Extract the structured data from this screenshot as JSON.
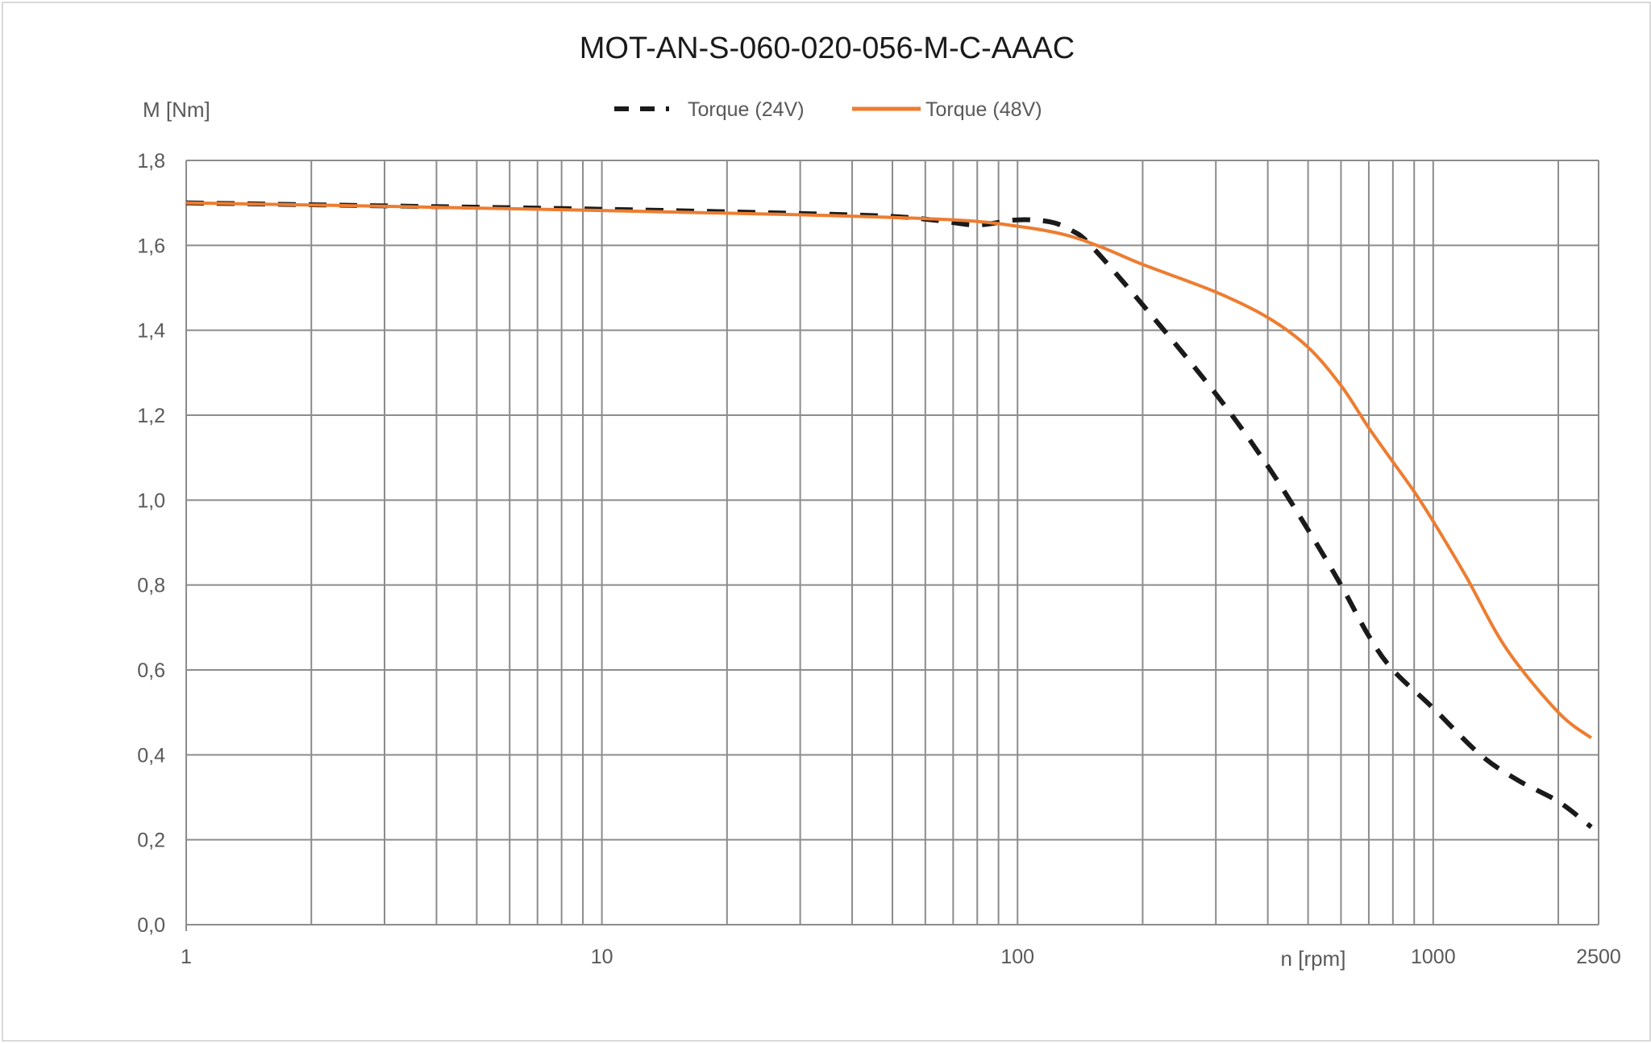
{
  "chart_data": {
    "type": "line",
    "title": "MOT-AN-S-060-020-056-M-C-AAAC",
    "xlabel": "n [rpm]",
    "ylabel": "M [Nm]",
    "xscale": "log",
    "xlim": [
      1,
      2500
    ],
    "ylim": [
      0,
      1.8
    ],
    "grid": true,
    "legend_position": "top-center",
    "x_tick_labels": [
      {
        "value": 1,
        "label": "1"
      },
      {
        "value": 10,
        "label": "10"
      },
      {
        "value": 100,
        "label": "100"
      },
      {
        "value": 1000,
        "label": "1000"
      },
      {
        "value": 2500,
        "label": "2500"
      }
    ],
    "x_gridlines": [
      1,
      2,
      3,
      4,
      5,
      6,
      7,
      8,
      9,
      10,
      20,
      30,
      40,
      50,
      60,
      70,
      80,
      90,
      100,
      200,
      300,
      400,
      500,
      600,
      700,
      800,
      900,
      1000,
      2000,
      2500
    ],
    "y_tick_labels": [
      {
        "value": 0,
        "label": "0,0"
      },
      {
        "value": 0.2,
        "label": "0,2"
      },
      {
        "value": 0.4,
        "label": "0,4"
      },
      {
        "value": 0.6,
        "label": "0,6"
      },
      {
        "value": 0.8,
        "label": "0,8"
      },
      {
        "value": 1.0,
        "label": "1,0"
      },
      {
        "value": 1.2,
        "label": "1,2"
      },
      {
        "value": 1.4,
        "label": "1,4"
      },
      {
        "value": 1.6,
        "label": "1,6"
      },
      {
        "value": 1.8,
        "label": "1,8"
      }
    ],
    "series": [
      {
        "name": "Torque (24V)",
        "color": "#1a1a1a",
        "style": "dashed",
        "x": [
          1,
          3,
          10,
          30,
          50,
          65,
          80,
          100,
          120,
          135,
          150,
          200,
          300,
          400,
          500,
          600,
          700,
          800,
          1000,
          1300,
          1600,
          2000,
          2400
        ],
        "y": [
          1.7,
          1.693,
          1.685,
          1.675,
          1.668,
          1.658,
          1.648,
          1.66,
          1.655,
          1.635,
          1.6,
          1.46,
          1.25,
          1.08,
          0.93,
          0.8,
          0.68,
          0.6,
          0.51,
          0.4,
          0.34,
          0.29,
          0.23
        ]
      },
      {
        "name": "Torque (48V)",
        "color": "#ed7d31",
        "style": "solid",
        "x": [
          1,
          3,
          10,
          30,
          70,
          100,
          130,
          160,
          200,
          300,
          400,
          500,
          600,
          700,
          800,
          900,
          1000,
          1200,
          1500,
          2000,
          2400
        ],
        "y": [
          1.7,
          1.692,
          1.682,
          1.672,
          1.66,
          1.645,
          1.625,
          1.595,
          1.555,
          1.49,
          1.43,
          1.36,
          1.27,
          1.17,
          1.09,
          1.02,
          0.95,
          0.82,
          0.65,
          0.5,
          0.44
        ]
      }
    ]
  }
}
